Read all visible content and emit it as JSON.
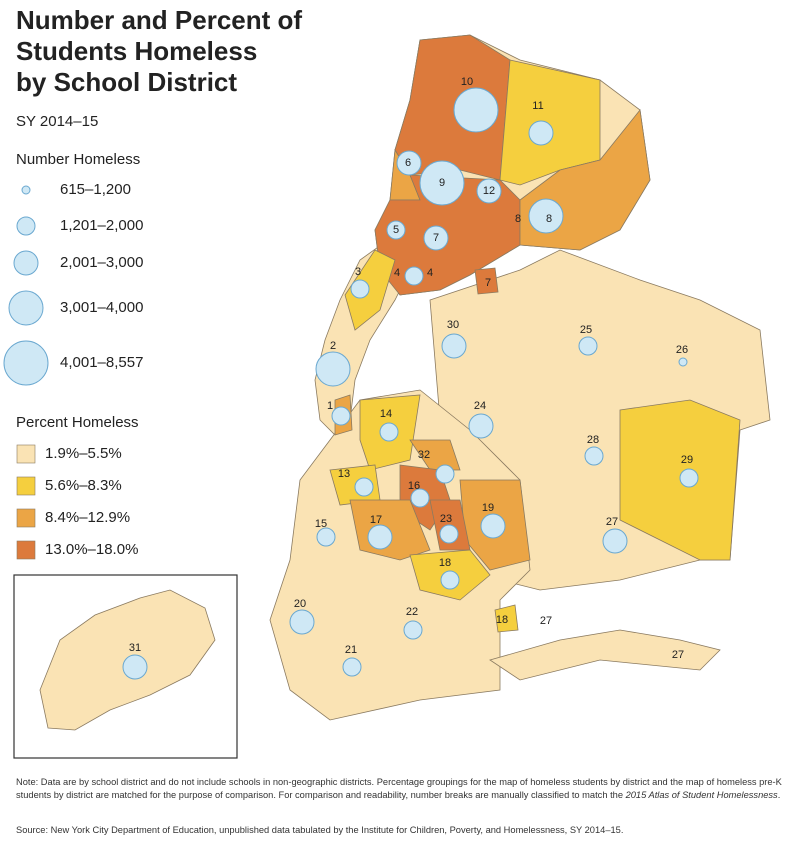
{
  "title": [
    "Number and Percent of",
    "Students Homeless",
    "by School District"
  ],
  "subtitle": "SY 2014–15",
  "number_legend": {
    "title": "Number Homeless",
    "items": [
      "615–1,200",
      "1,201–2,000",
      "2,001–3,000",
      "3,001–4,000",
      "4,001–8,557"
    ]
  },
  "percent_legend": {
    "title": "Percent Homeless",
    "items": [
      "1.9%–5.5%",
      "5.6%–8.3%",
      "8.4%–12.9%",
      "13.0%–18.0%"
    ],
    "colors": [
      "#fae3b4",
      "#f5cf3e",
      "#eba545",
      "#dc7a3c"
    ]
  },
  "bubble_color": "#cfe8f5",
  "districts": [
    {
      "label": "10",
      "number_class": 4,
      "percent_class": 3
    },
    {
      "label": "11",
      "number_class": 2,
      "percent_class": 1
    },
    {
      "label": "6",
      "number_class": 2,
      "percent_class": 2
    },
    {
      "label": "9",
      "number_class": 4,
      "percent_class": 3
    },
    {
      "label": "12",
      "number_class": 2,
      "percent_class": 3
    },
    {
      "label": "8",
      "percent_class": 2
    },
    {
      "label": "8",
      "number_class": 3,
      "percent_class": 2
    },
    {
      "label": "5",
      "number_class": 1,
      "percent_class": 3
    },
    {
      "label": "7",
      "number_class": 2,
      "percent_class": 3
    },
    {
      "label": "7",
      "percent_class": 3
    },
    {
      "label": "4",
      "percent_class": 3
    },
    {
      "label": "4",
      "number_class": 1,
      "percent_class": 3
    },
    {
      "label": "3",
      "number_class": 1,
      "percent_class": 1
    },
    {
      "label": "2",
      "number_class": 3,
      "percent_class": 0
    },
    {
      "label": "1",
      "number_class": 1,
      "percent_class": 2
    },
    {
      "label": "30",
      "number_class": 2,
      "percent_class": 0
    },
    {
      "label": "25",
      "number_class": 1,
      "percent_class": 0
    },
    {
      "label": "26",
      "number_class": 0,
      "percent_class": 0
    },
    {
      "label": "24",
      "number_class": 2,
      "percent_class": 0
    },
    {
      "label": "14",
      "number_class": 1,
      "percent_class": 1
    },
    {
      "label": "32",
      "number_class": 1,
      "percent_class": 2
    },
    {
      "label": "28",
      "number_class": 1,
      "percent_class": 0
    },
    {
      "label": "29",
      "number_class": 1,
      "percent_class": 1
    },
    {
      "label": "13",
      "number_class": 1,
      "percent_class": 1
    },
    {
      "label": "16",
      "number_class": 1,
      "percent_class": 3
    },
    {
      "label": "19",
      "number_class": 2,
      "percent_class": 2
    },
    {
      "label": "23",
      "number_class": 1,
      "percent_class": 3
    },
    {
      "label": "17",
      "number_class": 2,
      "percent_class": 2
    },
    {
      "label": "15",
      "number_class": 1,
      "percent_class": 0
    },
    {
      "label": "27",
      "number_class": 2,
      "percent_class": 0
    },
    {
      "label": "18",
      "number_class": 1,
      "percent_class": 1
    },
    {
      "label": "20",
      "number_class": 2,
      "percent_class": 0
    },
    {
      "label": "22",
      "number_class": 1,
      "percent_class": 0
    },
    {
      "label": "18",
      "percent_class": 1
    },
    {
      "label": "27",
      "percent_class": 0
    },
    {
      "label": "27",
      "percent_class": 0
    },
    {
      "label": "21",
      "number_class": 1,
      "percent_class": 0
    },
    {
      "label": "31",
      "number_class": 2,
      "percent_class": 0
    }
  ],
  "note": [
    "Note: Data are by school district and do not include schools in non-geographic districts. Percentage groupings for the map of homeless students by district and the map of homeless pre-K students by district are matched for the purpose of comparison. For comparison and readability, number breaks are manually classified to match the ",
    "2015 Atlas of Student Homelessness",
    "."
  ],
  "source": "Source: New York City Department of Education, unpublished data tabulated by the Institute for Children, Poverty, and Homelessness, SY 2014–15."
}
